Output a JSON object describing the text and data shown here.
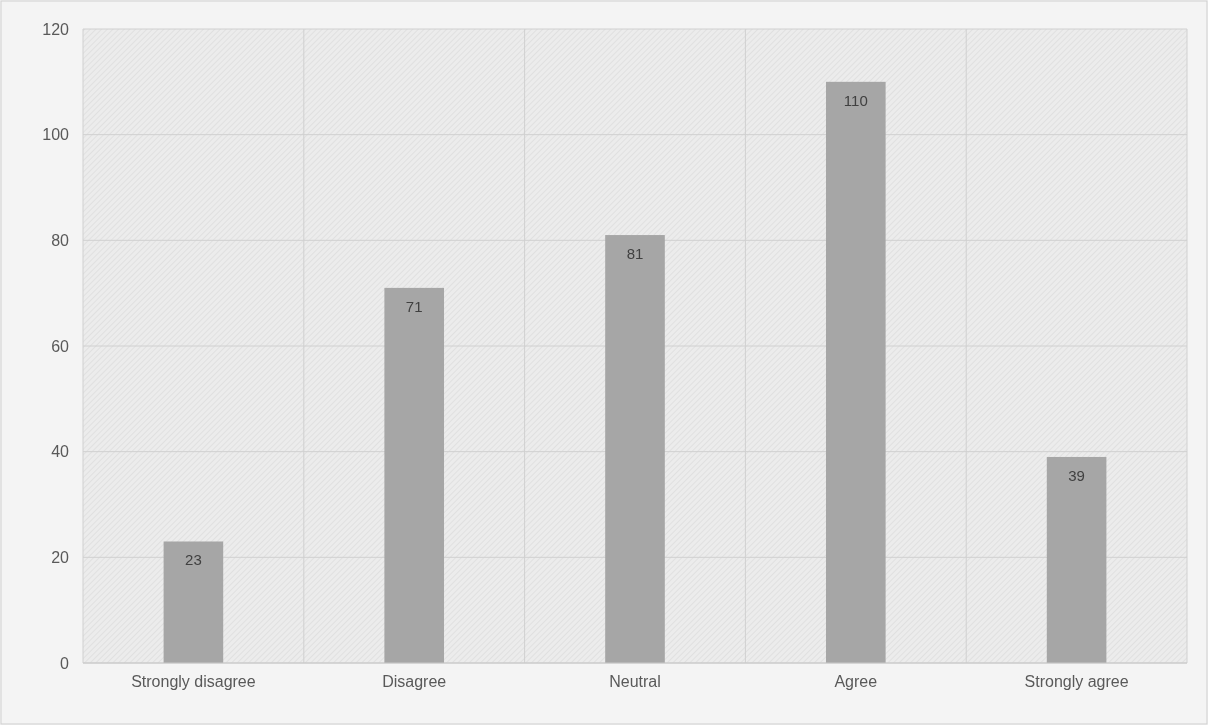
{
  "chart_data": {
    "type": "bar",
    "categories": [
      "Strongly disagree",
      "Disagree",
      "Neutral",
      "Agree",
      "Strongly agree"
    ],
    "values": [
      23,
      71,
      81,
      110,
      39
    ],
    "color": "#a6a6a6",
    "ylim": [
      0,
      120
    ],
    "yticks": [
      0,
      20,
      40,
      60,
      80,
      100,
      120
    ],
    "grid": true,
    "data_labels": true
  }
}
